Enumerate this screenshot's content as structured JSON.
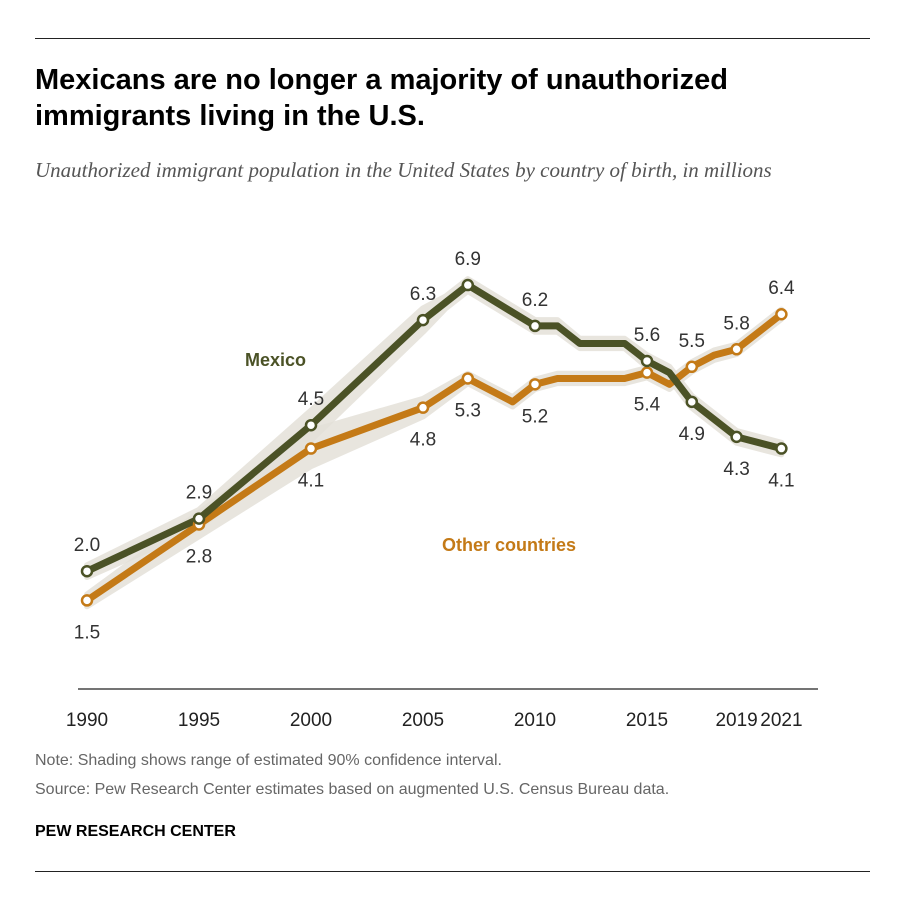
{
  "title": "Mexicans are no longer a majority of unauthorized immigrants living in the U.S.",
  "subtitle": "Unauthorized immigrant population in the United States by country of birth, in millions",
  "note": "Note: Shading shows range of estimated 90% confidence interval.",
  "source": "Source: Pew Research Center estimates based on augmented U.S. Census Bureau data.",
  "brand": "PEW RESEARCH CENTER",
  "chart_data": {
    "type": "line",
    "title": "Mexicans are no longer a majority of unauthorized immigrants living in the U.S.",
    "xlabel": "",
    "ylabel": "Millions",
    "xlim": [
      1990,
      2021
    ],
    "ylim": [
      0,
      7
    ],
    "grid": false,
    "x_ticks": [
      "1990",
      "1995",
      "2000",
      "2005",
      "2010",
      "2015",
      "2019",
      "2021"
    ],
    "series": [
      {
        "name": "Mexico",
        "color": "#4b5226",
        "label_pos": "above",
        "x": [
          1990,
          1995,
          2000,
          2005,
          2006,
          2007,
          2010,
          2011,
          2012,
          2014,
          2015,
          2016,
          2017,
          2018,
          2019,
          2021
        ],
        "y": [
          2.0,
          2.9,
          4.5,
          6.3,
          6.6,
          6.9,
          6.2,
          6.2,
          5.9,
          5.9,
          5.6,
          5.4,
          4.9,
          4.6,
          4.3,
          4.1
        ],
        "ci": [
          0.1,
          0.15,
          0.25,
          0.2,
          0.1,
          0.1,
          0.1,
          0.1,
          0.08,
          0.08,
          0.1,
          0.1,
          0.1,
          0.1,
          0.1,
          0.1
        ],
        "markers": [
          1990,
          1995,
          2000,
          2005,
          2007,
          2010,
          2015,
          2017,
          2019,
          2021
        ],
        "labels": [
          {
            "year": 1990,
            "text": "2.0",
            "pos": "above"
          },
          {
            "year": 1995,
            "text": "2.9",
            "pos": "above"
          },
          {
            "year": 2000,
            "text": "4.5",
            "pos": "above"
          },
          {
            "year": 2005,
            "text": "6.3",
            "pos": "above"
          },
          {
            "year": 2007,
            "text": "6.9",
            "pos": "above"
          },
          {
            "year": 2010,
            "text": "6.2",
            "pos": "above"
          },
          {
            "year": 2015,
            "text": "5.6",
            "pos": "above"
          },
          {
            "year": 2017,
            "text": "4.9",
            "pos": "below"
          },
          {
            "year": 2019,
            "text": "4.3",
            "pos": "below"
          },
          {
            "year": 2021,
            "text": "4.1",
            "pos": "below"
          }
        ]
      },
      {
        "name": "Other countries",
        "color": "#c47a17",
        "label_pos": "below",
        "x": [
          1990,
          1995,
          2000,
          2005,
          2007,
          2009,
          2010,
          2011,
          2014,
          2015,
          2016,
          2017,
          2018,
          2019,
          2021
        ],
        "y": [
          1.5,
          2.8,
          4.1,
          4.8,
          5.3,
          4.9,
          5.2,
          5.3,
          5.3,
          5.4,
          5.2,
          5.5,
          5.7,
          5.8,
          6.4
        ],
        "ci": [
          0.1,
          0.2,
          0.3,
          0.15,
          0.08,
          0.08,
          0.08,
          0.08,
          0.08,
          0.08,
          0.08,
          0.08,
          0.08,
          0.08,
          0.08
        ],
        "markers": [
          1990,
          1995,
          2000,
          2005,
          2007,
          2010,
          2015,
          2017,
          2019,
          2021
        ],
        "labels": [
          {
            "year": 1990,
            "text": "1.5",
            "pos": "below"
          },
          {
            "year": 1995,
            "text": "2.8",
            "pos": "below"
          },
          {
            "year": 2000,
            "text": "4.1",
            "pos": "below"
          },
          {
            "year": 2005,
            "text": "4.8",
            "pos": "below"
          },
          {
            "year": 2007,
            "text": "5.3",
            "pos": "below"
          },
          {
            "year": 2010,
            "text": "5.2",
            "pos": "below"
          },
          {
            "year": 2015,
            "text": "5.4",
            "pos": "below"
          },
          {
            "year": 2017,
            "text": "5.5",
            "pos": "above"
          },
          {
            "year": 2019,
            "text": "5.8",
            "pos": "above"
          },
          {
            "year": 2021,
            "text": "6.4",
            "pos": "above"
          }
        ]
      }
    ]
  }
}
